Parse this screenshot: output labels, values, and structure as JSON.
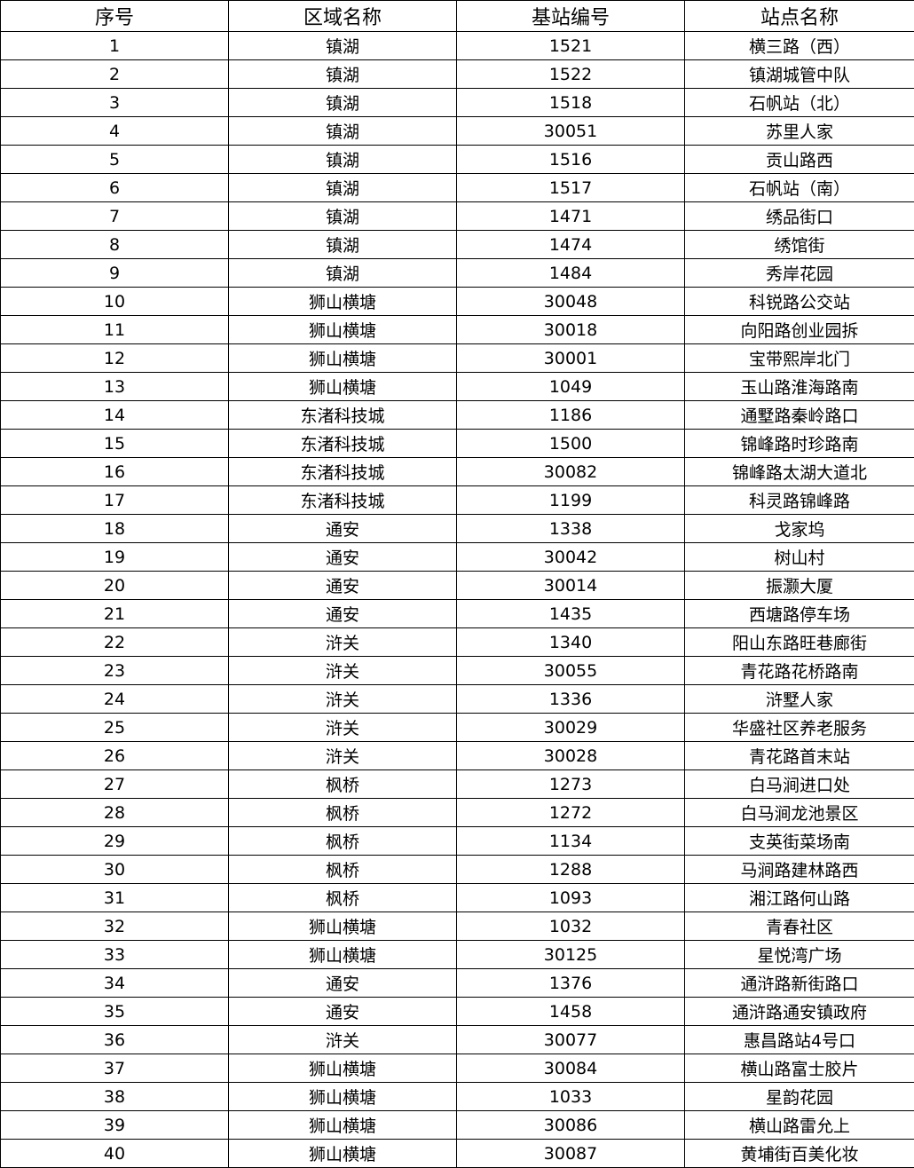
{
  "table": {
    "headers": [
      "序号",
      "区域名称",
      "基站编号",
      "站点名称"
    ],
    "rows": [
      [
        "1",
        "镇湖",
        "1521",
        "横三路（西）"
      ],
      [
        "2",
        "镇湖",
        "1522",
        "镇湖城管中队"
      ],
      [
        "3",
        "镇湖",
        "1518",
        "石帆站（北）"
      ],
      [
        "4",
        "镇湖",
        "30051",
        "苏里人家"
      ],
      [
        "5",
        "镇湖",
        "1516",
        "贡山路西"
      ],
      [
        "6",
        "镇湖",
        "1517",
        "石帆站（南）"
      ],
      [
        "7",
        "镇湖",
        "1471",
        "绣品街口"
      ],
      [
        "8",
        "镇湖",
        "1474",
        "绣馆街"
      ],
      [
        "9",
        "镇湖",
        "1484",
        "秀岸花园"
      ],
      [
        "10",
        "狮山横塘",
        "30048",
        "科锐路公交站"
      ],
      [
        "11",
        "狮山横塘",
        "30018",
        "向阳路创业园拆"
      ],
      [
        "12",
        "狮山横塘",
        "30001",
        "宝带熙岸北门"
      ],
      [
        "13",
        "狮山横塘",
        "1049",
        "玉山路淮海路南"
      ],
      [
        "14",
        "东渚科技城",
        "1186",
        "通墅路秦岭路口"
      ],
      [
        "15",
        "东渚科技城",
        "1500",
        "锦峰路时珍路南"
      ],
      [
        "16",
        "东渚科技城",
        "30082",
        "锦峰路太湖大道北"
      ],
      [
        "17",
        "东渚科技城",
        "1199",
        "科灵路锦峰路"
      ],
      [
        "18",
        "通安",
        "1338",
        "戈家坞"
      ],
      [
        "19",
        "通安",
        "30042",
        "树山村"
      ],
      [
        "20",
        "通安",
        "30014",
        "振灏大厦"
      ],
      [
        "21",
        "通安",
        "1435",
        "西塘路停车场"
      ],
      [
        "22",
        "浒关",
        "1340",
        "阳山东路旺巷廊街"
      ],
      [
        "23",
        "浒关",
        "30055",
        "青花路花桥路南"
      ],
      [
        "24",
        "浒关",
        "1336",
        "浒墅人家"
      ],
      [
        "25",
        "浒关",
        "30029",
        "华盛社区养老服务"
      ],
      [
        "26",
        "浒关",
        "30028",
        "青花路首末站"
      ],
      [
        "27",
        "枫桥",
        "1273",
        "白马涧进口处"
      ],
      [
        "28",
        "枫桥",
        "1272",
        "白马涧龙池景区"
      ],
      [
        "29",
        "枫桥",
        "1134",
        "支英街菜场南"
      ],
      [
        "30",
        "枫桥",
        "1288",
        "马涧路建林路西"
      ],
      [
        "31",
        "枫桥",
        "1093",
        "湘江路何山路"
      ],
      [
        "32",
        "狮山横塘",
        "1032",
        "青春社区"
      ],
      [
        "33",
        "狮山横塘",
        "30125",
        "星悦湾广场"
      ],
      [
        "34",
        "通安",
        "1376",
        "通浒路新街路口"
      ],
      [
        "35",
        "通安",
        "1458",
        "通浒路通安镇政府"
      ],
      [
        "36",
        "浒关",
        "30077",
        "惠昌路站4号口"
      ],
      [
        "37",
        "狮山横塘",
        "30084",
        "横山路富士胶片"
      ],
      [
        "38",
        "狮山横塘",
        "1033",
        "星韵花园"
      ],
      [
        "39",
        "狮山横塘",
        "30086",
        "横山路雷允上"
      ],
      [
        "40",
        "狮山横塘",
        "30087",
        "黄埔街百美化妆"
      ]
    ]
  }
}
